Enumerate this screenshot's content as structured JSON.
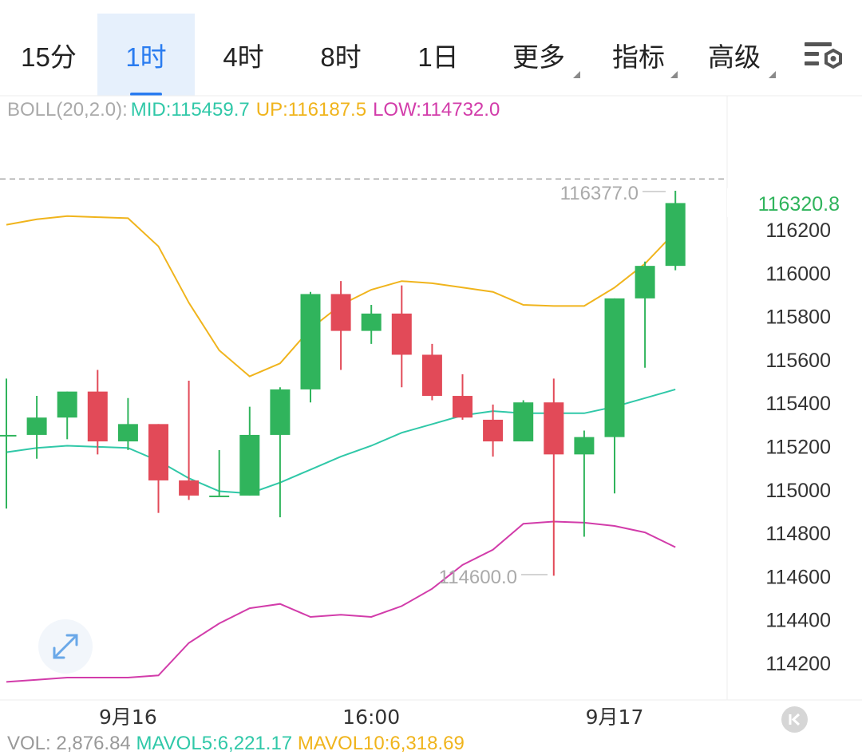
{
  "tabs": [
    {
      "label": "15分",
      "active": false
    },
    {
      "label": "1时",
      "active": true
    },
    {
      "label": "4时",
      "active": false
    },
    {
      "label": "8时",
      "active": false
    },
    {
      "label": "1日",
      "active": false
    },
    {
      "label": "更多",
      "active": false,
      "dropdown": true
    },
    {
      "label": "指标",
      "active": false,
      "dropdown": true
    },
    {
      "label": "高级",
      "active": false,
      "dropdown": true
    }
  ],
  "settings_icon": "chart-settings-icon",
  "boll": {
    "label": "BOLL(20,2.0):",
    "mid": "MID:115459.7",
    "up": "UP:116187.5",
    "low": "LOW:114732.0"
  },
  "volume": {
    "label": "VOL: 2,876.84",
    "mavol5": "MAVOL5:6,221.17",
    "mavol10": "MAVOL10:6,318.69"
  },
  "colors": {
    "up": "#30b45c",
    "down": "#e24a58",
    "mid": "#30c8a8",
    "upper": "#f0b41c",
    "lower": "#d23caa",
    "last_price": "#30b45c",
    "accent": "#2a7cf0"
  },
  "chart_data": {
    "type": "candlestick",
    "interval": "1时",
    "ylim": [
      114050,
      116650
    ],
    "y_ticks": [
      114200,
      114400,
      114600,
      114800,
      115000,
      115200,
      115400,
      115600,
      115800,
      116000,
      116200
    ],
    "x_labels": [
      "9月16",
      "16:00",
      "9月17"
    ],
    "x_label_index": [
      4,
      12,
      20
    ],
    "last_price": "116320.8",
    "high_label": "116377.0",
    "low_label": "114600.0",
    "candles": [
      {
        "o": 115250,
        "h": 115510,
        "l": 114910,
        "c": 115250
      },
      {
        "o": 115250,
        "h": 115430,
        "l": 115140,
        "c": 115330
      },
      {
        "o": 115330,
        "h": 115450,
        "l": 115230,
        "c": 115450
      },
      {
        "o": 115450,
        "h": 115550,
        "l": 115160,
        "c": 115220
      },
      {
        "o": 115220,
        "h": 115420,
        "l": 115180,
        "c": 115300
      },
      {
        "o": 115300,
        "h": 115300,
        "l": 114890,
        "c": 115040
      },
      {
        "o": 115040,
        "h": 115500,
        "l": 114950,
        "c": 114970
      },
      {
        "o": 114970,
        "h": 115180,
        "l": 114970,
        "c": 114970
      },
      {
        "o": 114970,
        "h": 115380,
        "l": 114970,
        "c": 115250
      },
      {
        "o": 115250,
        "h": 115470,
        "l": 114870,
        "c": 115460
      },
      {
        "o": 115460,
        "h": 115910,
        "l": 115400,
        "c": 115900
      },
      {
        "o": 115900,
        "h": 115960,
        "l": 115550,
        "c": 115730
      },
      {
        "o": 115730,
        "h": 115850,
        "l": 115670,
        "c": 115810
      },
      {
        "o": 115810,
        "h": 115940,
        "l": 115470,
        "c": 115620
      },
      {
        "o": 115620,
        "h": 115670,
        "l": 115410,
        "c": 115430
      },
      {
        "o": 115430,
        "h": 115530,
        "l": 115320,
        "c": 115330
      },
      {
        "o": 115320,
        "h": 115390,
        "l": 115150,
        "c": 115220
      },
      {
        "o": 115220,
        "h": 115410,
        "l": 115220,
        "c": 115400
      },
      {
        "o": 115400,
        "h": 115510,
        "l": 114600,
        "c": 115160
      },
      {
        "o": 115160,
        "h": 115270,
        "l": 114780,
        "c": 115240
      },
      {
        "o": 115240,
        "h": 115880,
        "l": 114980,
        "c": 115880
      },
      {
        "o": 115880,
        "h": 116050,
        "l": 115560,
        "c": 116030
      },
      {
        "o": 116030,
        "h": 116377,
        "l": 116010,
        "c": 116320
      }
    ],
    "series": [
      {
        "name": "MID",
        "values": [
          115170,
          115190,
          115200,
          115195,
          115190,
          115130,
          115050,
          114990,
          114980,
          115030,
          115090,
          115150,
          115200,
          115260,
          115300,
          115340,
          115360,
          115350,
          115350,
          115350,
          115380,
          115420,
          115460
        ]
      },
      {
        "name": "UP",
        "values": [
          116220,
          116245,
          116260,
          116255,
          116250,
          116120,
          115860,
          115640,
          115520,
          115580,
          115740,
          115850,
          115920,
          115960,
          115950,
          115930,
          115910,
          115850,
          115845,
          115845,
          115930,
          116040,
          116187.5
        ]
      },
      {
        "name": "LOW",
        "values": [
          114110,
          114120,
          114130,
          114130,
          114130,
          114140,
          114290,
          114380,
          114450,
          114470,
          114410,
          114420,
          114410,
          114460,
          114540,
          114650,
          114720,
          114840,
          114850,
          114845,
          114830,
          114800,
          114732
        ]
      }
    ]
  }
}
